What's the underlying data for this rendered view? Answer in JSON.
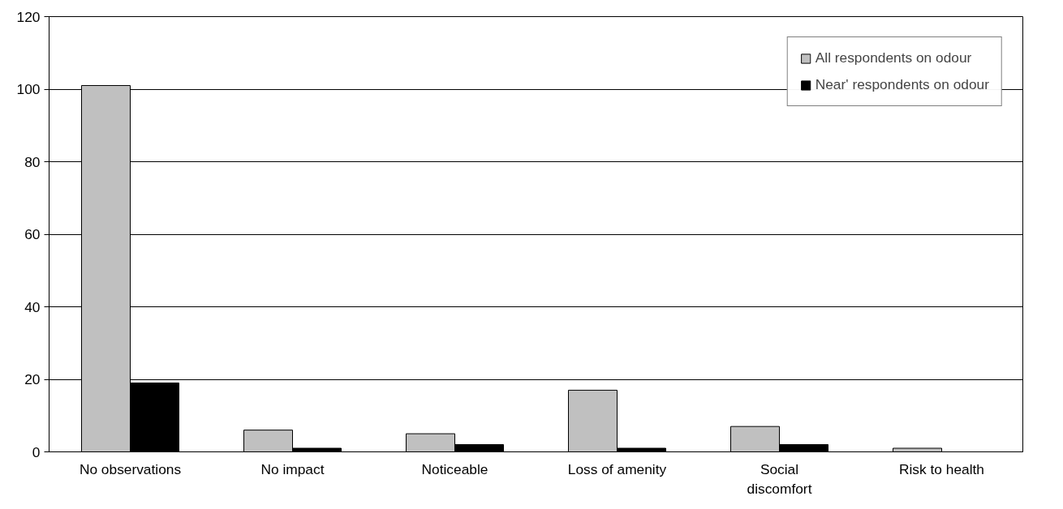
{
  "chart_data": {
    "type": "bar",
    "categories": [
      "No observations",
      "No impact",
      "Noticeable",
      "Loss of amenity",
      "Social\ndiscomfort",
      "Risk to health"
    ],
    "series": [
      {
        "name": "All respondents on odour",
        "color": "#c0c0c0",
        "values": [
          101,
          6,
          5,
          17,
          7,
          1
        ]
      },
      {
        "name": "Near' respondents on odour",
        "color": "#000000",
        "values": [
          19,
          1,
          2,
          1,
          2,
          0
        ]
      }
    ],
    "ylim": [
      0,
      120
    ],
    "yticks": [
      0,
      20,
      40,
      60,
      80,
      100,
      120
    ],
    "grid": "y",
    "legend": "top right"
  }
}
